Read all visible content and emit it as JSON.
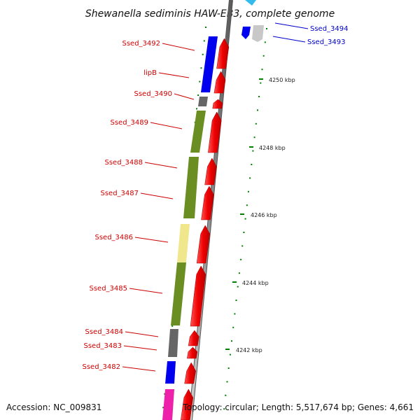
{
  "title": "Shewanella sediminis HAW-EB3, complete genome",
  "footer": {
    "accession": "Accession: NC_009831",
    "summary": "Topology: circular; Length: 5,517,674 bp; Genes: 4,661"
  },
  "ticks": [
    {
      "label": "4250 kbp"
    },
    {
      "label": "4248 kbp"
    },
    {
      "label": "4246 kbp"
    },
    {
      "label": "4244 kbp"
    },
    {
      "label": "4242 kbp"
    }
  ],
  "genes_left": [
    {
      "label": "Ssed_3492",
      "color": "#0000ee"
    },
    {
      "label": "lipB",
      "color": "#0000ee"
    },
    {
      "label": "Ssed_3490",
      "color": "#666666"
    },
    {
      "label": "Ssed_3489",
      "color": "#6b8e23"
    },
    {
      "label": "Ssed_3488",
      "color": "#6b8e23"
    },
    {
      "label": "Ssed_3487",
      "color": "#6b8e23"
    },
    {
      "label": "Ssed_3486",
      "color": "#f0e68c"
    },
    {
      "label": "Ssed_3485",
      "color": "#6b8e23"
    },
    {
      "label": "Ssed_3484",
      "color": "#666666"
    },
    {
      "label": "Ssed_3483",
      "color": "#666666"
    },
    {
      "label": "Ssed_3482",
      "color": "#0000ee"
    }
  ],
  "genes_right": [
    {
      "label": "Ssed_3494",
      "color": "#0000ee"
    },
    {
      "label": "Ssed_3493",
      "color": "#c8c8c8"
    }
  ],
  "colors": {
    "left_label": "#cc0000",
    "right_label": "#0000cc",
    "cds_arrow": "#ee0000",
    "tick": "#008000",
    "backbone": "#888888"
  }
}
